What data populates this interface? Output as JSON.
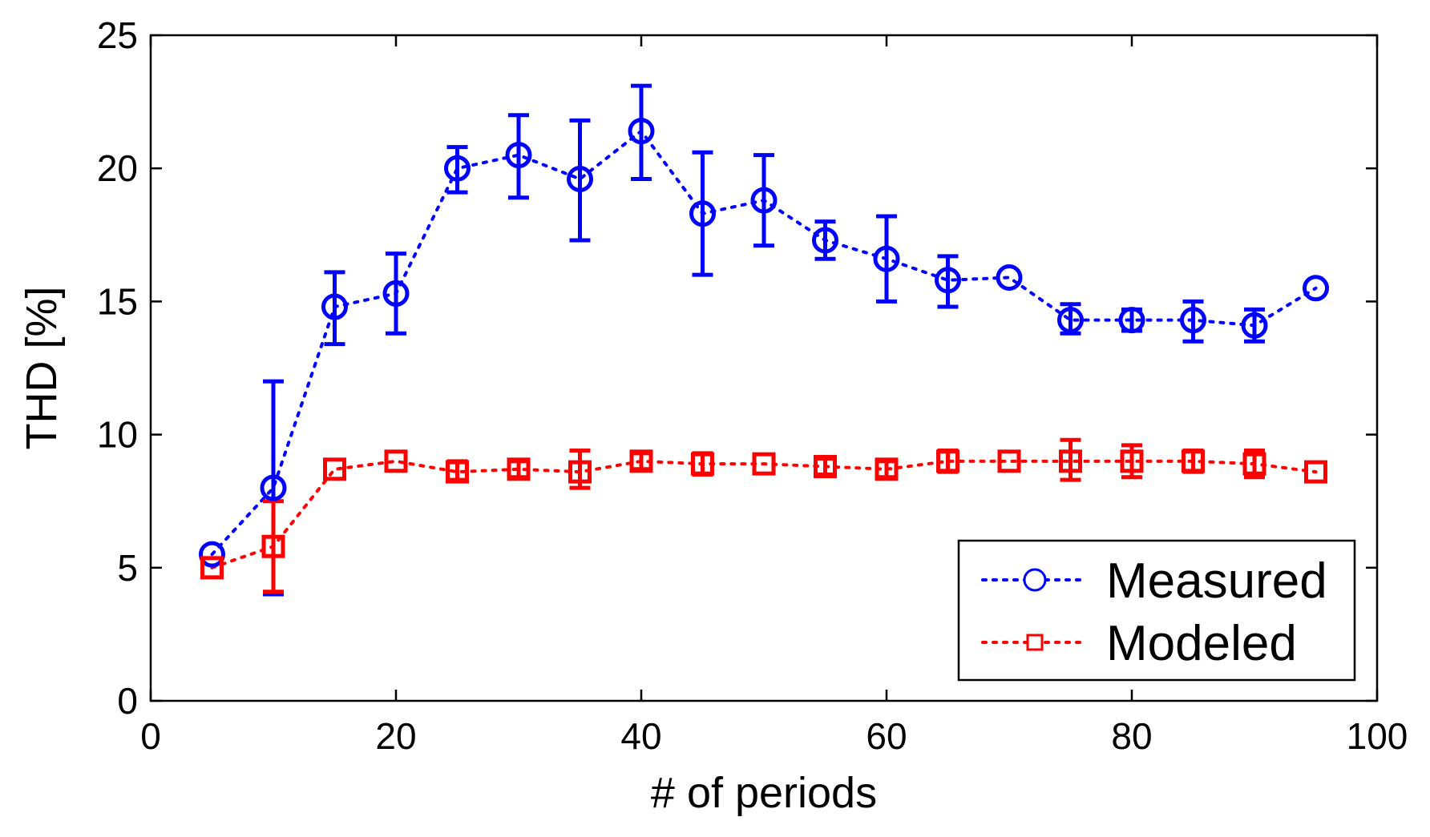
{
  "chart_data": {
    "type": "line",
    "title": "",
    "xlabel": "# of periods",
    "ylabel": "THD [%]",
    "xlim": [
      0,
      100
    ],
    "ylim": [
      0,
      25
    ],
    "xticks": [
      0,
      20,
      40,
      60,
      80,
      100
    ],
    "yticks": [
      0,
      5,
      10,
      15,
      20,
      25
    ],
    "legend_position": "bottom-right",
    "x": [
      5,
      10,
      15,
      20,
      25,
      30,
      35,
      40,
      45,
      50,
      55,
      60,
      65,
      70,
      75,
      80,
      85,
      90,
      95
    ],
    "series": [
      {
        "name": "Measured",
        "color": "#0000ff",
        "marker": "circle",
        "linestyle": "dotted",
        "values": [
          5.5,
          8.0,
          14.8,
          15.3,
          20.0,
          20.5,
          19.6,
          21.4,
          18.3,
          18.8,
          17.3,
          16.6,
          15.8,
          15.9,
          14.3,
          14.3,
          14.3,
          14.1,
          15.5
        ],
        "err_low": [
          null,
          4.0,
          13.4,
          13.8,
          19.1,
          18.9,
          17.3,
          19.6,
          16.0,
          17.1,
          16.6,
          15.0,
          14.8,
          null,
          13.8,
          13.9,
          13.5,
          13.5,
          null
        ],
        "err_high": [
          null,
          12.0,
          16.1,
          16.8,
          20.8,
          22.0,
          21.8,
          23.1,
          20.6,
          20.5,
          18.0,
          18.2,
          16.7,
          null,
          14.9,
          14.7,
          15.0,
          14.7,
          null
        ]
      },
      {
        "name": "Modeled",
        "color": "#ff0000",
        "marker": "square",
        "linestyle": "dotted",
        "values": [
          5.0,
          5.8,
          8.7,
          9.0,
          8.6,
          8.7,
          8.6,
          9.0,
          8.9,
          8.9,
          8.8,
          8.7,
          9.0,
          9.0,
          9.0,
          9.0,
          9.0,
          8.9,
          8.6
        ],
        "err_low": [
          null,
          4.1,
          null,
          null,
          8.3,
          8.4,
          8.0,
          8.7,
          8.5,
          null,
          8.5,
          8.4,
          8.6,
          null,
          8.3,
          8.4,
          8.6,
          8.4,
          null
        ],
        "err_high": [
          null,
          7.5,
          null,
          null,
          9.0,
          9.0,
          9.4,
          9.3,
          9.3,
          null,
          9.1,
          9.0,
          9.4,
          null,
          9.8,
          9.6,
          9.4,
          9.4,
          null
        ]
      }
    ]
  }
}
